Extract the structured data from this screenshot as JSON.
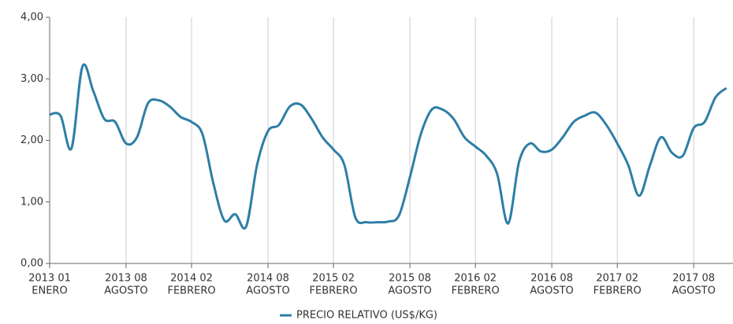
{
  "chart_data": {
    "type": "line",
    "categories": [
      "2013 01",
      null,
      null,
      null,
      null,
      null,
      null,
      "2013 08",
      null,
      null,
      null,
      null,
      null,
      "2014 02",
      null,
      null,
      null,
      null,
      null,
      null,
      "2014 08",
      null,
      null,
      null,
      null,
      null,
      "2015 02",
      null,
      null,
      null,
      null,
      null,
      null,
      "2015 08",
      null,
      null,
      null,
      null,
      null,
      "2016 02",
      null,
      null,
      null,
      null,
      null,
      null,
      "2016 08",
      null,
      null,
      null,
      null,
      null,
      "2017 02",
      null,
      null,
      null,
      null,
      null,
      null,
      "2017 08",
      null,
      null,
      null
    ],
    "category_sublabels": [
      "ENERO",
      null,
      null,
      null,
      null,
      null,
      null,
      "AGOSTO",
      null,
      null,
      null,
      null,
      null,
      "FEBRERO",
      null,
      null,
      null,
      null,
      null,
      null,
      "AGOSTO",
      null,
      null,
      null,
      null,
      null,
      "FEBRERO",
      null,
      null,
      null,
      null,
      null,
      null,
      "AGOSTO",
      null,
      null,
      null,
      null,
      null,
      "FEBRERO",
      null,
      null,
      null,
      null,
      null,
      null,
      "AGOSTO",
      null,
      null,
      null,
      null,
      null,
      "FEBRERO",
      null,
      null,
      null,
      null,
      null,
      null,
      "AGOSTO",
      null,
      null,
      null
    ],
    "series": [
      {
        "name": "PRECIO RELATIVO (US$/KG)",
        "color": "#2e7ea6",
        "values": [
          2.42,
          2.4,
          1.87,
          3.2,
          2.8,
          2.35,
          2.3,
          1.95,
          2.05,
          2.6,
          2.65,
          2.55,
          2.38,
          2.3,
          2.1,
          1.3,
          0.7,
          0.8,
          0.6,
          1.6,
          2.15,
          2.25,
          2.55,
          2.58,
          2.35,
          2.05,
          1.85,
          1.6,
          0.75,
          0.67,
          0.67,
          0.68,
          0.78,
          1.4,
          2.1,
          2.5,
          2.5,
          2.35,
          2.05,
          1.9,
          1.75,
          1.45,
          0.65,
          1.65,
          1.95,
          1.82,
          1.85,
          2.05,
          2.3,
          2.4,
          2.45,
          2.25,
          1.95,
          1.6,
          1.1,
          1.6,
          2.05,
          1.8,
          1.75,
          2.2,
          2.3,
          2.7,
          2.85
        ]
      }
    ],
    "ylim": [
      0,
      4
    ],
    "yticks": [
      {
        "value": 0,
        "label": "0,00"
      },
      {
        "value": 1,
        "label": "1,00"
      },
      {
        "value": 2,
        "label": "2,00"
      },
      {
        "value": 3,
        "label": "3,00"
      },
      {
        "value": 4,
        "label": "4,00"
      }
    ],
    "grid": true,
    "legend": "bottom"
  }
}
